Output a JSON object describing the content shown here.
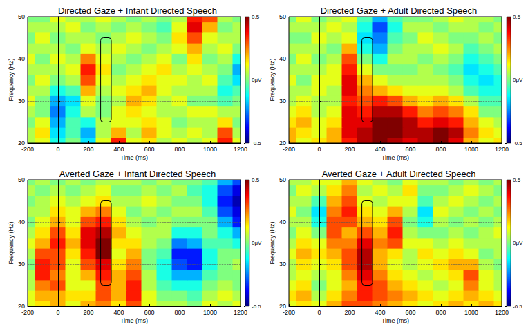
{
  "chart_data": [
    {
      "type": "heatmap",
      "title": "Directed Gaze + Infant Directed Speech",
      "x_label": "Time (ms)",
      "y_label": "Frequency (Hz)",
      "x": [
        -200,
        -100,
        0,
        100,
        200,
        300,
        400,
        500,
        600,
        700,
        800,
        900,
        1000,
        1100,
        1200
      ],
      "y": [
        20,
        22.5,
        25,
        27.5,
        30,
        32.5,
        35,
        37.5,
        40,
        42.5,
        45,
        47.5,
        50
      ],
      "values": [
        [
          0.05,
          0.1,
          -0.1,
          0.0,
          -0.15,
          0.1,
          0.35,
          0.1,
          0.15,
          0.05,
          0.1,
          0.05,
          0.1,
          0.35,
          0.1
        ],
        [
          0.05,
          0.15,
          -0.15,
          -0.05,
          -0.2,
          0.05,
          0.2,
          0.05,
          0.2,
          0.1,
          0.05,
          0.1,
          0.05,
          0.3,
          0.05
        ],
        [
          0.0,
          0.1,
          -0.2,
          -0.05,
          -0.1,
          0.05,
          0.1,
          0.1,
          0.15,
          0.1,
          0.0,
          0.05,
          0.05,
          0.15,
          0.0
        ],
        [
          0.05,
          0.0,
          -0.25,
          -0.1,
          0.05,
          0.0,
          0.1,
          0.15,
          0.1,
          0.05,
          0.05,
          0.1,
          0.1,
          0.05,
          0.05
        ],
        [
          0.1,
          0.0,
          -0.2,
          -0.15,
          0.1,
          0.0,
          0.05,
          0.2,
          0.15,
          0.05,
          0.1,
          0.0,
          0.0,
          -0.05,
          0.0
        ],
        [
          0.05,
          0.05,
          -0.1,
          -0.05,
          0.2,
          0.05,
          0.1,
          0.15,
          0.2,
          0.1,
          0.05,
          0.05,
          0.05,
          -0.1,
          -0.05
        ],
        [
          0.0,
          0.1,
          0.0,
          0.05,
          0.3,
          0.1,
          0.05,
          0.1,
          0.15,
          0.1,
          0.1,
          0.05,
          0.1,
          -0.05,
          -0.15
        ],
        [
          0.05,
          0.05,
          0.05,
          0.1,
          0.35,
          0.15,
          0.0,
          0.05,
          0.1,
          0.15,
          0.05,
          0.1,
          0.05,
          0.0,
          -0.2
        ],
        [
          0.1,
          0.0,
          0.1,
          0.05,
          0.25,
          0.1,
          0.05,
          0.0,
          0.05,
          0.1,
          0.0,
          0.15,
          0.0,
          0.05,
          -0.1
        ],
        [
          0.05,
          0.05,
          0.05,
          0.0,
          0.1,
          0.05,
          0.1,
          0.05,
          0.0,
          0.05,
          0.1,
          0.2,
          0.05,
          0.1,
          0.0
        ],
        [
          0.0,
          0.1,
          0.0,
          0.05,
          0.05,
          0.0,
          0.05,
          0.1,
          0.05,
          0.0,
          0.15,
          0.3,
          0.1,
          0.05,
          0.05
        ],
        [
          0.05,
          0.05,
          0.05,
          0.1,
          0.0,
          0.05,
          0.0,
          0.05,
          0.0,
          -0.05,
          0.1,
          0.4,
          0.2,
          0.0,
          0.05
        ],
        [
          0.0,
          0.0,
          0.1,
          0.05,
          0.05,
          0.1,
          0.05,
          0.0,
          0.05,
          0.0,
          0.05,
          0.35,
          0.3,
          0.05,
          0.0
        ]
      ],
      "xlim": [
        -200,
        1200
      ],
      "xticks": [
        -200,
        0,
        200,
        400,
        600,
        800,
        1000,
        1200
      ],
      "ylim": [
        20,
        50
      ],
      "yticks": [
        20,
        30,
        40,
        50
      ],
      "colorbar": {
        "range": [
          -0.5,
          0.5
        ],
        "ticks": [
          -0.5,
          {
            "value": 0,
            "label": "0μV"
          },
          0.5
        ]
      },
      "box": {
        "x": [
          280,
          350
        ],
        "y": [
          25,
          45
        ]
      },
      "grid": true
    },
    {
      "type": "heatmap",
      "title": "Directed Gaze + Adult Directed Speech",
      "x_label": "Time (ms)",
      "y_label": "Frequency (Hz)",
      "x": [
        -200,
        -100,
        0,
        100,
        200,
        300,
        400,
        500,
        600,
        700,
        800,
        900,
        1000,
        1100,
        1200
      ],
      "y": [
        20,
        22.5,
        25,
        27.5,
        30,
        32.5,
        35,
        37.5,
        40,
        42.5,
        45,
        47.5,
        50
      ],
      "values": [
        [
          0.2,
          0.1,
          0.15,
          0.2,
          0.35,
          0.45,
          0.5,
          0.45,
          0.4,
          0.45,
          0.5,
          0.4,
          0.2,
          0.1,
          0.15
        ],
        [
          0.2,
          0.15,
          0.1,
          0.2,
          0.4,
          0.45,
          0.5,
          0.5,
          0.45,
          0.45,
          0.5,
          0.45,
          0.25,
          0.15,
          0.1
        ],
        [
          0.15,
          0.2,
          0.1,
          0.15,
          0.4,
          0.4,
          0.5,
          0.5,
          0.45,
          0.35,
          0.4,
          0.35,
          0.2,
          0.1,
          0.05
        ],
        [
          0.1,
          0.15,
          0.05,
          0.1,
          0.4,
          0.35,
          0.45,
          0.45,
          0.35,
          0.25,
          0.3,
          0.25,
          0.15,
          0.0,
          0.0
        ],
        [
          0.05,
          0.1,
          0.05,
          0.05,
          0.35,
          0.3,
          0.35,
          0.3,
          0.2,
          0.15,
          0.2,
          0.15,
          0.05,
          -0.05,
          -0.05
        ],
        [
          0.05,
          0.05,
          0.1,
          0.05,
          0.4,
          0.25,
          0.2,
          0.15,
          0.1,
          0.1,
          0.1,
          0.05,
          -0.05,
          -0.1,
          -0.1
        ],
        [
          0.1,
          0.0,
          0.1,
          0.1,
          0.4,
          0.2,
          0.1,
          0.05,
          0.05,
          0.05,
          0.05,
          0.0,
          -0.1,
          -0.15,
          -0.1
        ],
        [
          0.05,
          0.05,
          0.05,
          0.1,
          0.35,
          0.1,
          0.0,
          0.0,
          0.0,
          0.05,
          0.0,
          -0.05,
          -0.15,
          -0.1,
          -0.05
        ],
        [
          0.0,
          0.1,
          0.0,
          0.05,
          0.3,
          0.0,
          -0.1,
          0.05,
          0.05,
          0.0,
          0.05,
          0.0,
          -0.1,
          -0.05,
          0.0
        ],
        [
          0.05,
          0.05,
          0.05,
          0.0,
          0.2,
          -0.1,
          -0.2,
          0.0,
          0.05,
          0.05,
          0.1,
          0.05,
          -0.05,
          0.0,
          0.05
        ],
        [
          0.0,
          0.0,
          0.1,
          0.05,
          0.1,
          -0.15,
          -0.25,
          -0.05,
          0.0,
          0.1,
          0.05,
          0.0,
          0.0,
          0.05,
          0.0
        ],
        [
          0.05,
          0.05,
          0.05,
          0.1,
          0.05,
          -0.1,
          -0.3,
          -0.1,
          0.05,
          0.05,
          0.0,
          0.05,
          0.05,
          0.0,
          0.05
        ],
        [
          0.0,
          0.1,
          0.0,
          0.05,
          0.1,
          -0.05,
          -0.2,
          -0.05,
          0.0,
          0.0,
          0.05,
          0.1,
          0.05,
          0.05,
          0.0
        ]
      ],
      "xlim": [
        -200,
        1200
      ],
      "xticks": [
        -200,
        0,
        200,
        400,
        600,
        800,
        1000,
        1200
      ],
      "ylim": [
        20,
        50
      ],
      "yticks": [
        20,
        30,
        40,
        50
      ],
      "colorbar": {
        "range": [
          -0.5,
          0.5
        ],
        "ticks": [
          -0.5,
          {
            "value": 0,
            "label": "0μV"
          },
          0.5
        ]
      },
      "box": {
        "x": [
          280,
          350
        ],
        "y": [
          25,
          45
        ]
      },
      "grid": true
    },
    {
      "type": "heatmap",
      "title": "Averted Gaze + Infant Directed Speech",
      "x_label": "Time (ms)",
      "y_label": "Frequency (Hz)",
      "x": [
        -200,
        -100,
        0,
        100,
        200,
        300,
        400,
        500,
        600,
        700,
        800,
        900,
        1000,
        1100,
        1200
      ],
      "y": [
        20,
        22.5,
        25,
        27.5,
        30,
        32.5,
        35,
        37.5,
        40,
        42.5,
        45,
        47.5,
        50
      ],
      "values": [
        [
          0.1,
          0.15,
          0.2,
          0.1,
          0.2,
          0.25,
          0.15,
          0.3,
          0.1,
          0.05,
          0.05,
          0.0,
          0.1,
          0.05,
          0.1
        ],
        [
          0.1,
          0.2,
          0.2,
          0.15,
          0.15,
          0.3,
          0.2,
          0.35,
          0.1,
          0.0,
          0.0,
          -0.05,
          0.05,
          0.1,
          0.05
        ],
        [
          0.05,
          0.25,
          0.3,
          0.1,
          0.1,
          0.3,
          0.2,
          0.35,
          0.05,
          -0.05,
          -0.1,
          -0.1,
          0.0,
          0.05,
          0.0
        ],
        [
          0.05,
          0.35,
          0.25,
          0.1,
          0.2,
          0.35,
          0.2,
          0.3,
          0.05,
          -0.1,
          -0.2,
          -0.2,
          -0.05,
          0.0,
          0.0
        ],
        [
          0.0,
          0.35,
          0.3,
          0.1,
          0.3,
          0.4,
          0.15,
          0.25,
          0.0,
          -0.1,
          -0.3,
          -0.35,
          -0.1,
          0.0,
          0.05
        ],
        [
          0.05,
          0.3,
          0.3,
          0.15,
          0.35,
          0.5,
          0.1,
          0.2,
          0.0,
          -0.05,
          -0.35,
          -0.35,
          -0.1,
          0.0,
          0.0
        ],
        [
          0.1,
          0.2,
          0.35,
          0.2,
          0.4,
          0.5,
          0.15,
          0.15,
          0.05,
          0.0,
          -0.25,
          -0.2,
          -0.05,
          -0.05,
          -0.1
        ],
        [
          0.05,
          0.15,
          0.3,
          0.15,
          0.4,
          0.45,
          0.2,
          0.1,
          0.05,
          0.05,
          -0.1,
          -0.1,
          0.0,
          -0.1,
          -0.2
        ],
        [
          0.0,
          0.1,
          0.2,
          0.1,
          0.3,
          0.35,
          0.15,
          0.05,
          0.0,
          0.05,
          0.0,
          0.0,
          0.0,
          -0.2,
          -0.35
        ],
        [
          0.05,
          0.05,
          0.15,
          0.1,
          0.2,
          0.25,
          0.1,
          0.0,
          0.05,
          0.0,
          0.05,
          0.05,
          -0.05,
          -0.3,
          -0.4
        ],
        [
          0.0,
          0.05,
          0.1,
          0.05,
          0.1,
          0.15,
          0.05,
          0.05,
          0.1,
          0.05,
          0.0,
          0.0,
          -0.1,
          -0.35,
          -0.45
        ],
        [
          0.05,
          0.0,
          0.05,
          0.0,
          0.05,
          0.1,
          0.0,
          0.0,
          0.05,
          0.0,
          0.05,
          -0.05,
          -0.1,
          -0.3,
          -0.4
        ],
        [
          0.0,
          0.05,
          0.0,
          0.05,
          0.0,
          0.05,
          0.05,
          0.05,
          0.0,
          0.05,
          0.0,
          0.0,
          -0.05,
          -0.2,
          -0.3
        ]
      ],
      "xlim": [
        -200,
        1200
      ],
      "xticks": [
        -200,
        0,
        200,
        400,
        600,
        800,
        1000,
        1200
      ],
      "ylim": [
        20,
        50
      ],
      "yticks": [
        20,
        30,
        40,
        50
      ],
      "colorbar": {
        "range": [
          -0.5,
          0.5
        ],
        "ticks": [
          -0.5,
          {
            "value": 0,
            "label": "0μV"
          },
          0.5
        ]
      },
      "box": {
        "x": [
          280,
          350
        ],
        "y": [
          25,
          45
        ]
      },
      "grid": true
    },
    {
      "type": "heatmap",
      "title": "Averted Gaze + Adult Directed Speech",
      "x_label": "Time (ms)",
      "y_label": "Frequency (Hz)",
      "x": [
        -200,
        -100,
        0,
        100,
        200,
        300,
        400,
        500,
        600,
        700,
        800,
        900,
        1000,
        1100,
        1200
      ],
      "y": [
        20,
        22.5,
        25,
        27.5,
        30,
        32.5,
        35,
        37.5,
        40,
        42.5,
        45,
        47.5,
        50
      ],
      "values": [
        [
          0.1,
          0.15,
          0.1,
          0.2,
          0.3,
          0.3,
          0.25,
          0.2,
          0.15,
          0.1,
          0.15,
          0.2,
          0.15,
          0.2,
          0.15
        ],
        [
          0.15,
          0.2,
          0.05,
          0.15,
          0.25,
          0.35,
          0.3,
          0.25,
          0.2,
          0.15,
          0.1,
          0.15,
          0.2,
          0.15,
          0.1
        ],
        [
          0.1,
          0.15,
          0.0,
          0.1,
          0.2,
          0.35,
          0.3,
          0.2,
          0.15,
          0.1,
          0.05,
          0.1,
          0.25,
          0.1,
          0.05
        ],
        [
          0.05,
          0.1,
          0.05,
          0.1,
          0.25,
          0.4,
          0.25,
          0.15,
          0.1,
          0.05,
          0.1,
          0.15,
          0.3,
          0.1,
          0.05
        ],
        [
          0.05,
          0.15,
          0.1,
          0.15,
          0.3,
          0.45,
          0.2,
          0.1,
          0.05,
          0.1,
          0.15,
          0.2,
          0.2,
          0.05,
          0.0
        ],
        [
          0.1,
          0.2,
          0.15,
          0.2,
          0.3,
          0.45,
          0.2,
          0.15,
          0.05,
          0.15,
          0.1,
          0.15,
          0.1,
          0.0,
          0.05
        ],
        [
          0.05,
          0.15,
          0.1,
          0.25,
          0.25,
          0.4,
          0.25,
          0.3,
          0.1,
          0.1,
          0.05,
          0.1,
          0.05,
          0.05,
          0.05
        ],
        [
          0.0,
          0.1,
          0.0,
          0.3,
          0.2,
          0.3,
          0.2,
          0.35,
          0.05,
          0.0,
          0.0,
          0.05,
          0.0,
          0.05,
          0.1
        ],
        [
          0.05,
          0.05,
          -0.1,
          0.3,
          0.3,
          0.2,
          0.15,
          0.3,
          0.0,
          -0.1,
          0.05,
          0.0,
          0.05,
          0.0,
          0.05
        ],
        [
          0.1,
          0.0,
          -0.15,
          0.25,
          0.35,
          0.15,
          0.1,
          0.2,
          0.05,
          -0.15,
          0.1,
          0.05,
          0.0,
          0.05,
          0.0
        ],
        [
          0.05,
          0.05,
          -0.05,
          0.2,
          0.3,
          0.1,
          0.05,
          0.1,
          0.1,
          -0.05,
          0.05,
          0.1,
          0.05,
          0.0,
          0.05
        ],
        [
          0.0,
          0.1,
          0.05,
          0.15,
          0.25,
          0.05,
          0.1,
          0.05,
          0.15,
          0.0,
          0.0,
          0.05,
          0.1,
          0.05,
          0.0
        ],
        [
          0.05,
          0.05,
          0.1,
          0.1,
          0.2,
          0.1,
          0.05,
          0.0,
          0.1,
          0.05,
          0.05,
          0.0,
          0.05,
          0.0,
          0.05
        ]
      ],
      "xlim": [
        -200,
        1200
      ],
      "xticks": [
        -200,
        0,
        200,
        400,
        600,
        800,
        1000,
        1200
      ],
      "ylim": [
        20,
        50
      ],
      "yticks": [
        20,
        30,
        40,
        50
      ],
      "colorbar": {
        "range": [
          -0.5,
          0.5
        ],
        "ticks": [
          -0.5,
          {
            "value": 0,
            "label": "0μV"
          },
          0.5
        ]
      },
      "box": {
        "x": [
          280,
          350
        ],
        "y": [
          25,
          45
        ]
      },
      "grid": true
    }
  ]
}
